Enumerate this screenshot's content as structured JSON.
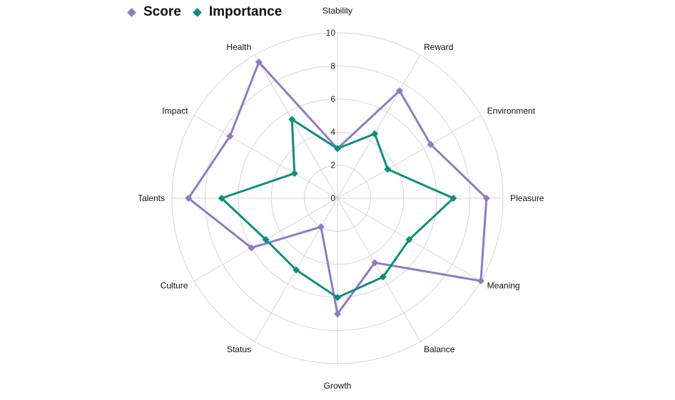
{
  "chart_data": {
    "type": "radar",
    "categories": [
      "Stability",
      "Reward",
      "Environment",
      "Pleasure",
      "Meaning",
      "Balance",
      "Growth",
      "Status",
      "Culture",
      "Talents",
      "Impact",
      "Health"
    ],
    "series": [
      {
        "name": "Score",
        "color": "#8E7CC3",
        "values": [
          3,
          7.5,
          6.5,
          9,
          10,
          4.5,
          7,
          2,
          6,
          9,
          7.5,
          9.5
        ]
      },
      {
        "name": "Importance",
        "color": "#0F8E7F",
        "values": [
          3,
          4.5,
          3.5,
          7,
          5,
          5.5,
          6,
          5,
          5,
          7,
          3,
          5.5
        ]
      }
    ],
    "rlim": [
      0,
      10
    ],
    "rticks": [
      "0",
      "2",
      "4",
      "6",
      "8",
      "10"
    ],
    "grid": true,
    "legend_position": "top-left"
  }
}
